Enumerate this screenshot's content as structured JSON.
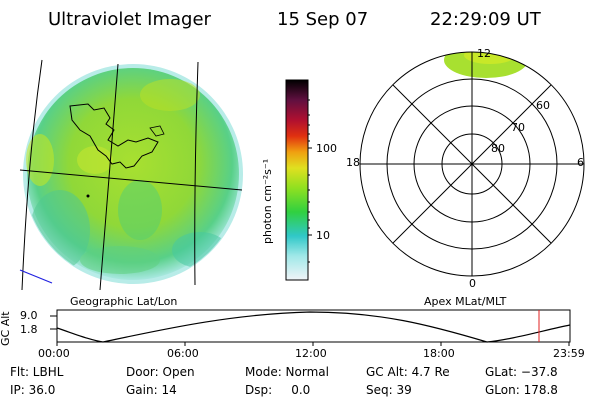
{
  "header": {
    "title": "Ultraviolet Imager",
    "date": "15 Sep 07",
    "time": "22:29:09 UT"
  },
  "panels": {
    "left_label": "Geographic Lat/Lon",
    "right_label": "Apex MLat/MLT"
  },
  "colorbar": {
    "unit_label": "photon cm⁻²s⁻¹",
    "ticks": [
      "100",
      "10"
    ],
    "scale": "log",
    "colors": [
      "#e8f0f4",
      "#30c8d0",
      "#30d020",
      "#c8e828",
      "#f0c020",
      "#f08010",
      "#d01010",
      "#600020",
      "#000000"
    ]
  },
  "polar": {
    "mlt_labels": {
      "top": "12",
      "left": "18",
      "right": "6",
      "bottom": "0"
    },
    "mlat_labels": [
      "60",
      "70",
      "80"
    ]
  },
  "altitude_plot": {
    "ylabel": "GC Alt",
    "yticks": [
      "9.0",
      "1.8"
    ],
    "xticks": [
      "00:00",
      "06:00",
      "12:00",
      "18:00",
      "23:59"
    ],
    "marker_color": "#e02020"
  },
  "info": {
    "flt": "Flt: LBHL",
    "door": "Door: Open",
    "mode": "Mode: Normal",
    "gc_alt": "GC Alt: 4.7 Re",
    "glat": "GLat: −37.8",
    "ip": "IP: 36.0",
    "gain": "Gain: 14",
    "dsp": "Dsp:     0.0",
    "seq": "Seq: 39",
    "glon": "GLon: 178.8"
  }
}
